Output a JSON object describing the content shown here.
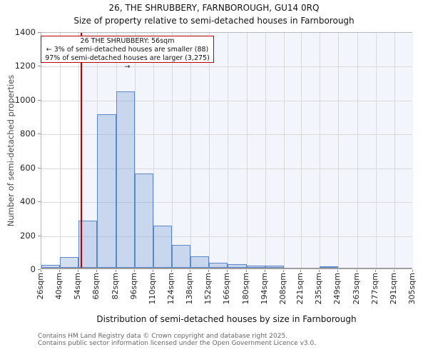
{
  "title": "26, THE SHRUBBERY, FARNBOROUGH, GU14 0RQ",
  "subtitle": "Size of property relative to semi-detached houses in Farnborough",
  "annotation": {
    "line1": "26 THE SHRUBBERY: 56sqm",
    "line2": "← 3% of semi-detached houses are smaller (88)",
    "line3": "97% of semi-detached houses are larger (3,275) →"
  },
  "footer": {
    "line1": "Contains HM Land Registry data © Crown copyright and database right 2025.",
    "line2": "Contains public sector information licensed under the Open Government Licence v3.0."
  },
  "chart_data": {
    "type": "bar",
    "title": "26, THE SHRUBBERY, FARNBOROUGH, GU14 0RQ",
    "subtitle": "Size of property relative to semi-detached houses in Farnborough",
    "xlabel": "Distribution of semi-detached houses by size in Farnborough",
    "ylabel": "Number of semi-detached properties",
    "xlim": [
      26,
      305
    ],
    "ylim": [
      0,
      1400
    ],
    "y_ticks": [
      0,
      200,
      400,
      600,
      800,
      1000,
      1200,
      1400
    ],
    "bin_edges_sqm": [
      26,
      40,
      54,
      68,
      82,
      96,
      110,
      124,
      138,
      152,
      166,
      180,
      194,
      208,
      221,
      235,
      249,
      263,
      277,
      291,
      305
    ],
    "x_tick_labels": [
      "26sqm",
      "40sqm",
      "54sqm",
      "68sqm",
      "82sqm",
      "96sqm",
      "110sqm",
      "124sqm",
      "138sqm",
      "152sqm",
      "166sqm",
      "180sqm",
      "194sqm",
      "208sqm",
      "221sqm",
      "235sqm",
      "249sqm",
      "263sqm",
      "277sqm",
      "291sqm",
      "305sqm"
    ],
    "values": [
      16,
      65,
      277,
      907,
      1041,
      555,
      250,
      136,
      68,
      30,
      23,
      12,
      12,
      0,
      0,
      6,
      0,
      0,
      0,
      0
    ],
    "grid": true,
    "marker": {
      "value_sqm": 56,
      "label": "26 THE SHRUBBERY: 56sqm",
      "color": "#bb0000"
    },
    "shaded_region": {
      "from_sqm": 56,
      "to_sqm": 305,
      "color": "#f2f5fc"
    },
    "bar_fill_rgba": "rgba(91,135,200,0.27)",
    "bar_border": "#5b87c8"
  }
}
